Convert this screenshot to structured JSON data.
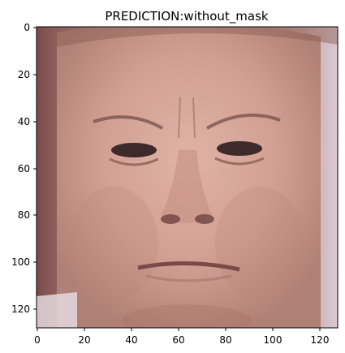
{
  "title": "PREDICTION:without_mask",
  "image": {
    "kind": "photo",
    "subject": "face",
    "content_note": "placeholder drawing of a man's face with furrowed brow",
    "dims": [
      128,
      128
    ]
  },
  "axes": {
    "x_ticks": [
      "0",
      "20",
      "40",
      "60",
      "80",
      "100",
      "120"
    ],
    "y_ticks": [
      "0",
      "20",
      "40",
      "60",
      "80",
      "100",
      "120"
    ],
    "x_range": [
      0,
      128
    ],
    "y_range": [
      0,
      128
    ]
  },
  "colors": {
    "skin": "#d7a699",
    "skin_shadow": "#b98479",
    "background_left": "#7b4a4a",
    "background_right": "#e9e1ef",
    "hair": "#8a5a52"
  }
}
